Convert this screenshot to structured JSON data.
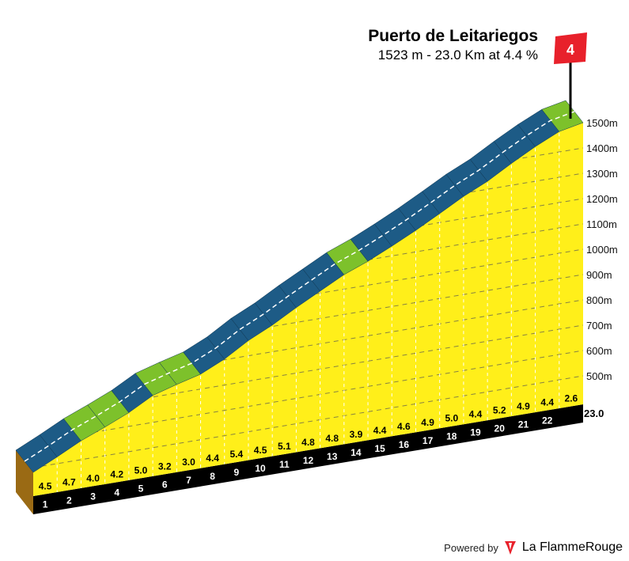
{
  "climb": {
    "name": "Puerto de Leitariegos",
    "summary": "1523 m - 23.0 Km at 4.4 %",
    "category": "4",
    "total_km_label": "23.0"
  },
  "footer": {
    "powered_by": "Powered by",
    "brand": "La FlammeRouge"
  },
  "colors": {
    "face": "#ffef1a",
    "base_band": "#000000",
    "road_steep": "#1d5b86",
    "road_flat": "#7dc12b",
    "flag": "#e8212b",
    "side": "#9a6a14"
  },
  "chart_data": {
    "type": "area",
    "title": "Puerto de Leitariegos",
    "subtitle": "1523 m - 23.0 Km at 4.4 %",
    "ylim": [
      500,
      1500
    ],
    "y_ticks": [
      "500m",
      "600m",
      "700m",
      "800m",
      "900m",
      "1000m",
      "1100m",
      "1200m",
      "1300m",
      "1400m",
      "1500m"
    ],
    "km_labels": [
      "1",
      "2",
      "3",
      "4",
      "5",
      "6",
      "7",
      "8",
      "9",
      "10",
      "11",
      "12",
      "13",
      "14",
      "15",
      "16",
      "17",
      "18",
      "19",
      "20",
      "21",
      "22"
    ],
    "gradients": [
      4.5,
      4.7,
      4.0,
      4.2,
      5.0,
      3.2,
      3.0,
      4.4,
      5.4,
      4.5,
      5.1,
      4.8,
      4.8,
      3.9,
      4.4,
      4.6,
      4.9,
      5.0,
      4.4,
      5.2,
      4.9,
      4.4,
      2.6
    ],
    "gradient_labels": [
      "4.5",
      "4.7",
      "4.0",
      "4.2",
      "5.0",
      "3.2",
      "3.0",
      "4.4",
      "5.4",
      "4.5",
      "5.1",
      "4.8",
      "4.8",
      "3.9",
      "4.4",
      "4.6",
      "4.9",
      "5.0",
      "4.4",
      "5.2",
      "4.9",
      "4.4",
      "2.6"
    ],
    "end_km": 23.0,
    "summit_elevation_m": 1523
  }
}
